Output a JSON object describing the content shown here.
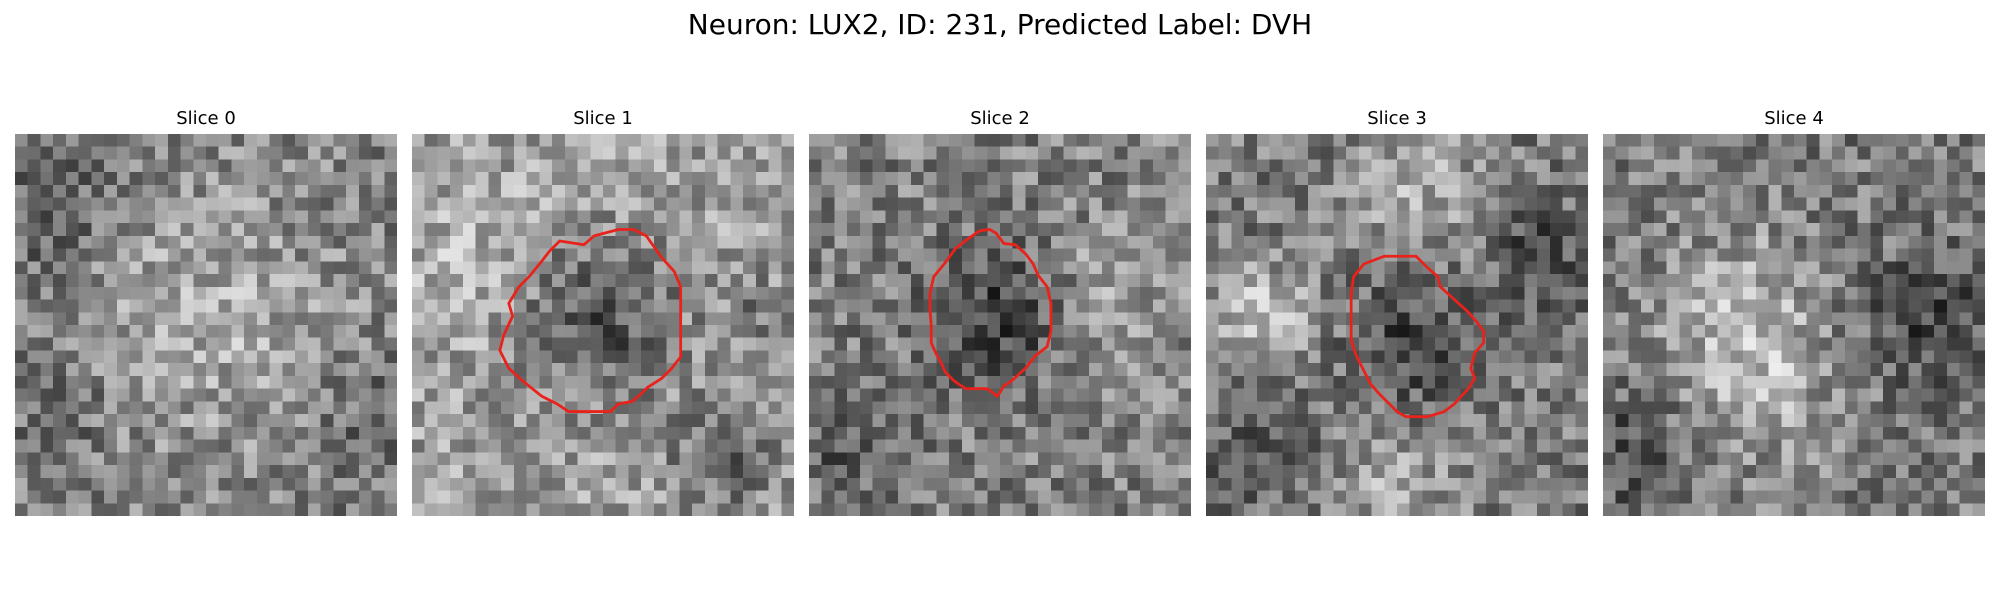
{
  "figure": {
    "title": "Neuron: LUX2, ID: 231, Predicted Label: DVH"
  },
  "panels": [
    {
      "title": "Slice 0",
      "has_outline": false,
      "outline_color": "#e8231c"
    },
    {
      "title": "Slice 1",
      "has_outline": true,
      "outline_color": "#e8231c"
    },
    {
      "title": "Slice 2",
      "has_outline": true,
      "outline_color": "#e8231c"
    },
    {
      "title": "Slice 3",
      "has_outline": true,
      "outline_color": "#e8231c"
    },
    {
      "title": "Slice 4",
      "has_outline": false,
      "outline_color": "#e8231c"
    }
  ],
  "colormap": "gray"
}
